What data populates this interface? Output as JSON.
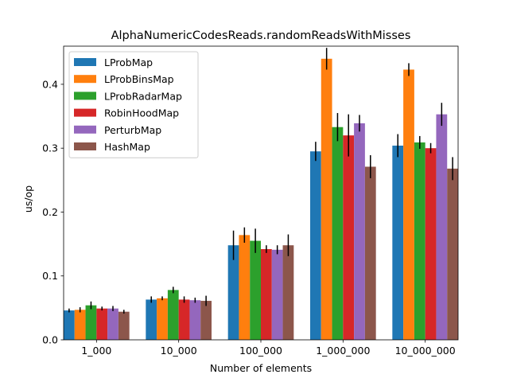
{
  "chart_data": {
    "type": "bar",
    "title": "AlphaNumericCodesReads.randomReadsWithMisses",
    "xlabel": "Number of elements",
    "ylabel": "us/op",
    "ylim": [
      0,
      0.4597
    ],
    "yticks": [
      0.0,
      0.1,
      0.2,
      0.3,
      0.4
    ],
    "ytick_labels": [
      "0.0",
      "0.1",
      "0.2",
      "0.3",
      "0.4"
    ],
    "categories": [
      "1_000",
      "10_000",
      "100_000",
      "1_000_000",
      "10_000_000"
    ],
    "legend_position": "upper-left",
    "series": [
      {
        "name": "LProbMap",
        "color": "#1f77b4",
        "values": [
          0.046,
          0.063,
          0.148,
          0.295,
          0.304
        ],
        "errors": [
          0.003,
          0.005,
          0.023,
          0.015,
          0.018
        ]
      },
      {
        "name": "LProbBinsMap",
        "color": "#ff7f0e",
        "values": [
          0.047,
          0.065,
          0.164,
          0.44,
          0.423
        ],
        "errors": [
          0.004,
          0.003,
          0.012,
          0.017,
          0.01
        ]
      },
      {
        "name": "LProbRadarMap",
        "color": "#2ca02c",
        "values": [
          0.054,
          0.078,
          0.155,
          0.333,
          0.309
        ],
        "errors": [
          0.006,
          0.005,
          0.019,
          0.022,
          0.01
        ]
      },
      {
        "name": "RobinHoodMap",
        "color": "#d62728",
        "values": [
          0.049,
          0.063,
          0.142,
          0.32,
          0.3
        ],
        "errors": [
          0.003,
          0.005,
          0.006,
          0.033,
          0.008
        ]
      },
      {
        "name": "PerturbMap",
        "color": "#9467bd",
        "values": [
          0.049,
          0.062,
          0.141,
          0.339,
          0.353
        ],
        "errors": [
          0.004,
          0.004,
          0.007,
          0.013,
          0.018
        ]
      },
      {
        "name": "HashMap",
        "color": "#8c564b",
        "values": [
          0.044,
          0.061,
          0.148,
          0.271,
          0.268
        ],
        "errors": [
          0.003,
          0.008,
          0.017,
          0.018,
          0.018
        ]
      }
    ]
  }
}
